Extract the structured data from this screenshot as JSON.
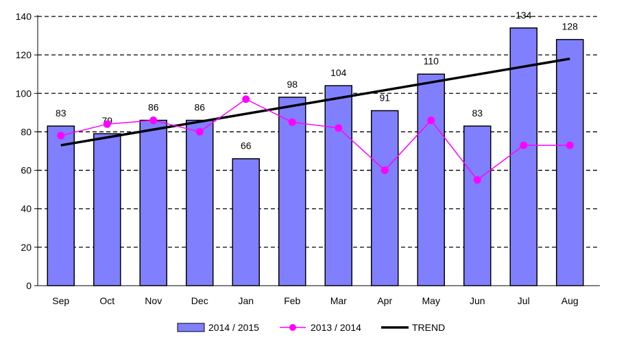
{
  "chart_data": {
    "type": "bar",
    "categories": [
      "Sep",
      "Oct",
      "Nov",
      "Dec",
      "Jan",
      "Feb",
      "Mar",
      "Apr",
      "May",
      "Jun",
      "Jul",
      "Aug"
    ],
    "series": [
      {
        "name": "2014 / 2015",
        "kind": "bar",
        "color": "#8080ff",
        "values": [
          83,
          79,
          86,
          86,
          66,
          98,
          104,
          91,
          110,
          83,
          134,
          128
        ],
        "data_labels": true
      },
      {
        "name": "2013 / 2014",
        "kind": "line",
        "color": "#ff00ff",
        "marker": "circle",
        "values": [
          78,
          84,
          86,
          80,
          97,
          85,
          82,
          60,
          86,
          55,
          73,
          73
        ]
      },
      {
        "name": "TREND",
        "kind": "line",
        "color": "#000000",
        "values": [
          73,
          77,
          81,
          85,
          89,
          93,
          97,
          101,
          105,
          109,
          114,
          118
        ]
      }
    ],
    "title": "",
    "xlabel": "",
    "ylabel": "",
    "ylim": [
      0,
      140
    ],
    "yticks": [
      0,
      20,
      40,
      60,
      80,
      100,
      120,
      140
    ],
    "grid": "horizontal-dashed",
    "legend": "bottom"
  }
}
